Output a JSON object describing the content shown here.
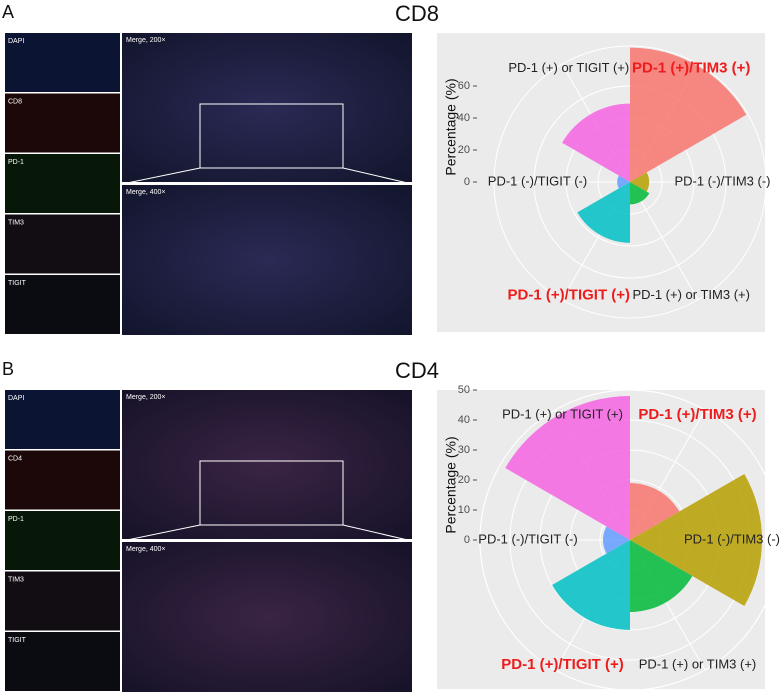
{
  "panels": [
    {
      "letter": "A",
      "channels": [
        "DAPI",
        "CD8",
        "PD-1",
        "TIM3",
        "TIGIT"
      ],
      "merge": [
        "Merge, 200×",
        "Merge, 400×"
      ]
    },
    {
      "letter": "B",
      "channels": [
        "DAPI",
        "CD4",
        "PD-1",
        "TIM3",
        "TIGIT"
      ],
      "merge": [
        "Merge, 200×",
        "Merge, 400×"
      ]
    }
  ],
  "chart_data": [
    {
      "type": "polar_bar",
      "title": "CD8",
      "y_label": "Percentage (%)",
      "categories": [
        "PD-1 (+)/TIM3 (+)",
        "PD-1 (-)/TIM3 (-)",
        "PD-1 (+) or TIM3 (+)",
        "PD-1 (+)/TIGIT (+)",
        "PD-1 (-)/TIGIT (-)",
        "PD-1 (+) or TIGIT (+)"
      ],
      "values": [
        84,
        12,
        14,
        38,
        8,
        49
      ],
      "colors": [
        "#F8766D",
        "#B79F00",
        "#00BA38",
        "#00BFC4",
        "#619CFF",
        "#F564E3"
      ],
      "label_colors": [
        "#ee1c1c",
        "#222222",
        "#222222",
        "#ee1c1c",
        "#222222",
        "#222222"
      ],
      "ylim": [
        0,
        85
      ],
      "yticks": [
        0,
        20,
        40,
        60
      ],
      "background": "#ebebeb",
      "grid": true
    },
    {
      "type": "polar_bar",
      "title": "CD4",
      "y_label": "Percentage (%)",
      "categories": [
        "PD-1 (+)/TIM3 (+)",
        "PD-1 (-)/TIM3 (-)",
        "PD-1 (+) or TIM3 (+)",
        "PD-1 (+)/TIGIT (+)",
        "PD-1 (-)/TIGIT (-)",
        "PD-1 (+) or TIGIT (+)"
      ],
      "values": [
        19,
        44,
        24,
        30,
        9,
        48
      ],
      "colors": [
        "#F8766D",
        "#B79F00",
        "#00BA38",
        "#00BFC4",
        "#619CFF",
        "#F564E3"
      ],
      "label_colors": [
        "#ee1c1c",
        "#222222",
        "#222222",
        "#ee1c1c",
        "#222222",
        "#222222"
      ],
      "ylim": [
        0,
        50
      ],
      "yticks": [
        0,
        10,
        20,
        30,
        40,
        50
      ],
      "background": "#ebebeb",
      "grid": true
    }
  ]
}
